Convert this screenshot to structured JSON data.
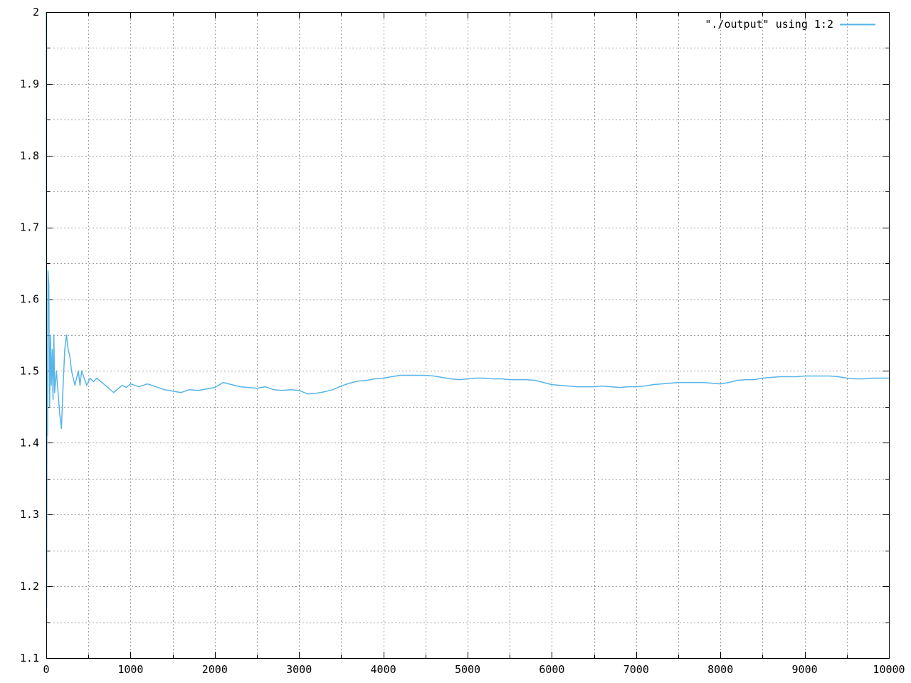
{
  "chart_data": {
    "type": "line",
    "title": "",
    "xlabel": "",
    "ylabel": "",
    "xlim": [
      0,
      10000
    ],
    "ylim": [
      1.1,
      2.0
    ],
    "grid": true,
    "legend_position": "top-right",
    "x_ticks": [
      "0",
      "1000",
      "2000",
      "3000",
      "4000",
      "5000",
      "6000",
      "7000",
      "8000",
      "9000",
      "10000"
    ],
    "y_ticks": [
      "1.1",
      "1.2",
      "1.3",
      "1.4",
      "1.5",
      "1.6",
      "1.7",
      "1.8",
      "1.9",
      "2"
    ],
    "series": [
      {
        "name": "\"./output\" using 1:2",
        "color": "#56b4e9",
        "points": [
          [
            1,
            2.0
          ],
          [
            5,
            1.17
          ],
          [
            10,
            1.5
          ],
          [
            15,
            1.41
          ],
          [
            20,
            1.64
          ],
          [
            30,
            1.62
          ],
          [
            40,
            1.45
          ],
          [
            50,
            1.55
          ],
          [
            60,
            1.48
          ],
          [
            70,
            1.53
          ],
          [
            80,
            1.46
          ],
          [
            90,
            1.55
          ],
          [
            100,
            1.47
          ],
          [
            120,
            1.5
          ],
          [
            140,
            1.47
          ],
          [
            160,
            1.44
          ],
          [
            180,
            1.42
          ],
          [
            190,
            1.45
          ],
          [
            200,
            1.48
          ],
          [
            220,
            1.53
          ],
          [
            240,
            1.55
          ],
          [
            260,
            1.53
          ],
          [
            280,
            1.52
          ],
          [
            300,
            1.5
          ],
          [
            320,
            1.49
          ],
          [
            340,
            1.48
          ],
          [
            360,
            1.49
          ],
          [
            380,
            1.5
          ],
          [
            400,
            1.48
          ],
          [
            420,
            1.5
          ],
          [
            450,
            1.49
          ],
          [
            480,
            1.48
          ],
          [
            520,
            1.49
          ],
          [
            560,
            1.485
          ],
          [
            600,
            1.49
          ],
          [
            650,
            1.485
          ],
          [
            700,
            1.48
          ],
          [
            750,
            1.475
          ],
          [
            800,
            1.47
          ],
          [
            850,
            1.475
          ],
          [
            900,
            1.48
          ],
          [
            950,
            1.477
          ],
          [
            1000,
            1.482
          ],
          [
            1100,
            1.478
          ],
          [
            1200,
            1.482
          ],
          [
            1300,
            1.478
          ],
          [
            1400,
            1.474
          ],
          [
            1500,
            1.472
          ],
          [
            1600,
            1.47
          ],
          [
            1700,
            1.474
          ],
          [
            1800,
            1.473
          ],
          [
            1900,
            1.475
          ],
          [
            2000,
            1.477
          ],
          [
            2100,
            1.484
          ],
          [
            2200,
            1.481
          ],
          [
            2300,
            1.478
          ],
          [
            2400,
            1.477
          ],
          [
            2500,
            1.476
          ],
          [
            2600,
            1.478
          ],
          [
            2700,
            1.474
          ],
          [
            2800,
            1.473
          ],
          [
            2900,
            1.474
          ],
          [
            3000,
            1.473
          ],
          [
            3100,
            1.468
          ],
          [
            3200,
            1.469
          ],
          [
            3300,
            1.471
          ],
          [
            3400,
            1.474
          ],
          [
            3500,
            1.479
          ],
          [
            3600,
            1.483
          ],
          [
            3700,
            1.486
          ],
          [
            3800,
            1.487
          ],
          [
            3900,
            1.489
          ],
          [
            4000,
            1.49
          ],
          [
            4100,
            1.492
          ],
          [
            4200,
            1.494
          ],
          [
            4300,
            1.494
          ],
          [
            4400,
            1.494
          ],
          [
            4500,
            1.494
          ],
          [
            4600,
            1.493
          ],
          [
            4700,
            1.491
          ],
          [
            4800,
            1.489
          ],
          [
            4900,
            1.488
          ],
          [
            5000,
            1.489
          ],
          [
            5100,
            1.49
          ],
          [
            5200,
            1.49
          ],
          [
            5300,
            1.489
          ],
          [
            5400,
            1.489
          ],
          [
            5500,
            1.488
          ],
          [
            5600,
            1.488
          ],
          [
            5700,
            1.488
          ],
          [
            5800,
            1.487
          ],
          [
            5900,
            1.484
          ],
          [
            6000,
            1.481
          ],
          [
            6100,
            1.48
          ],
          [
            6200,
            1.479
          ],
          [
            6300,
            1.478
          ],
          [
            6400,
            1.478
          ],
          [
            6500,
            1.478
          ],
          [
            6600,
            1.479
          ],
          [
            6700,
            1.478
          ],
          [
            6800,
            1.477
          ],
          [
            6900,
            1.478
          ],
          [
            7000,
            1.478
          ],
          [
            7100,
            1.479
          ],
          [
            7200,
            1.481
          ],
          [
            7300,
            1.482
          ],
          [
            7400,
            1.483
          ],
          [
            7500,
            1.484
          ],
          [
            7600,
            1.484
          ],
          [
            7700,
            1.484
          ],
          [
            7800,
            1.484
          ],
          [
            7900,
            1.483
          ],
          [
            8000,
            1.482
          ],
          [
            8100,
            1.484
          ],
          [
            8200,
            1.487
          ],
          [
            8300,
            1.488
          ],
          [
            8400,
            1.488
          ],
          [
            8500,
            1.49
          ],
          [
            8600,
            1.491
          ],
          [
            8700,
            1.492
          ],
          [
            8800,
            1.492
          ],
          [
            8900,
            1.492
          ],
          [
            9000,
            1.493
          ],
          [
            9100,
            1.493
          ],
          [
            9200,
            1.493
          ],
          [
            9300,
            1.493
          ],
          [
            9400,
            1.492
          ],
          [
            9500,
            1.49
          ],
          [
            9600,
            1.489
          ],
          [
            9700,
            1.489
          ],
          [
            9800,
            1.49
          ],
          [
            9900,
            1.49
          ],
          [
            10000,
            1.49
          ]
        ]
      }
    ]
  }
}
